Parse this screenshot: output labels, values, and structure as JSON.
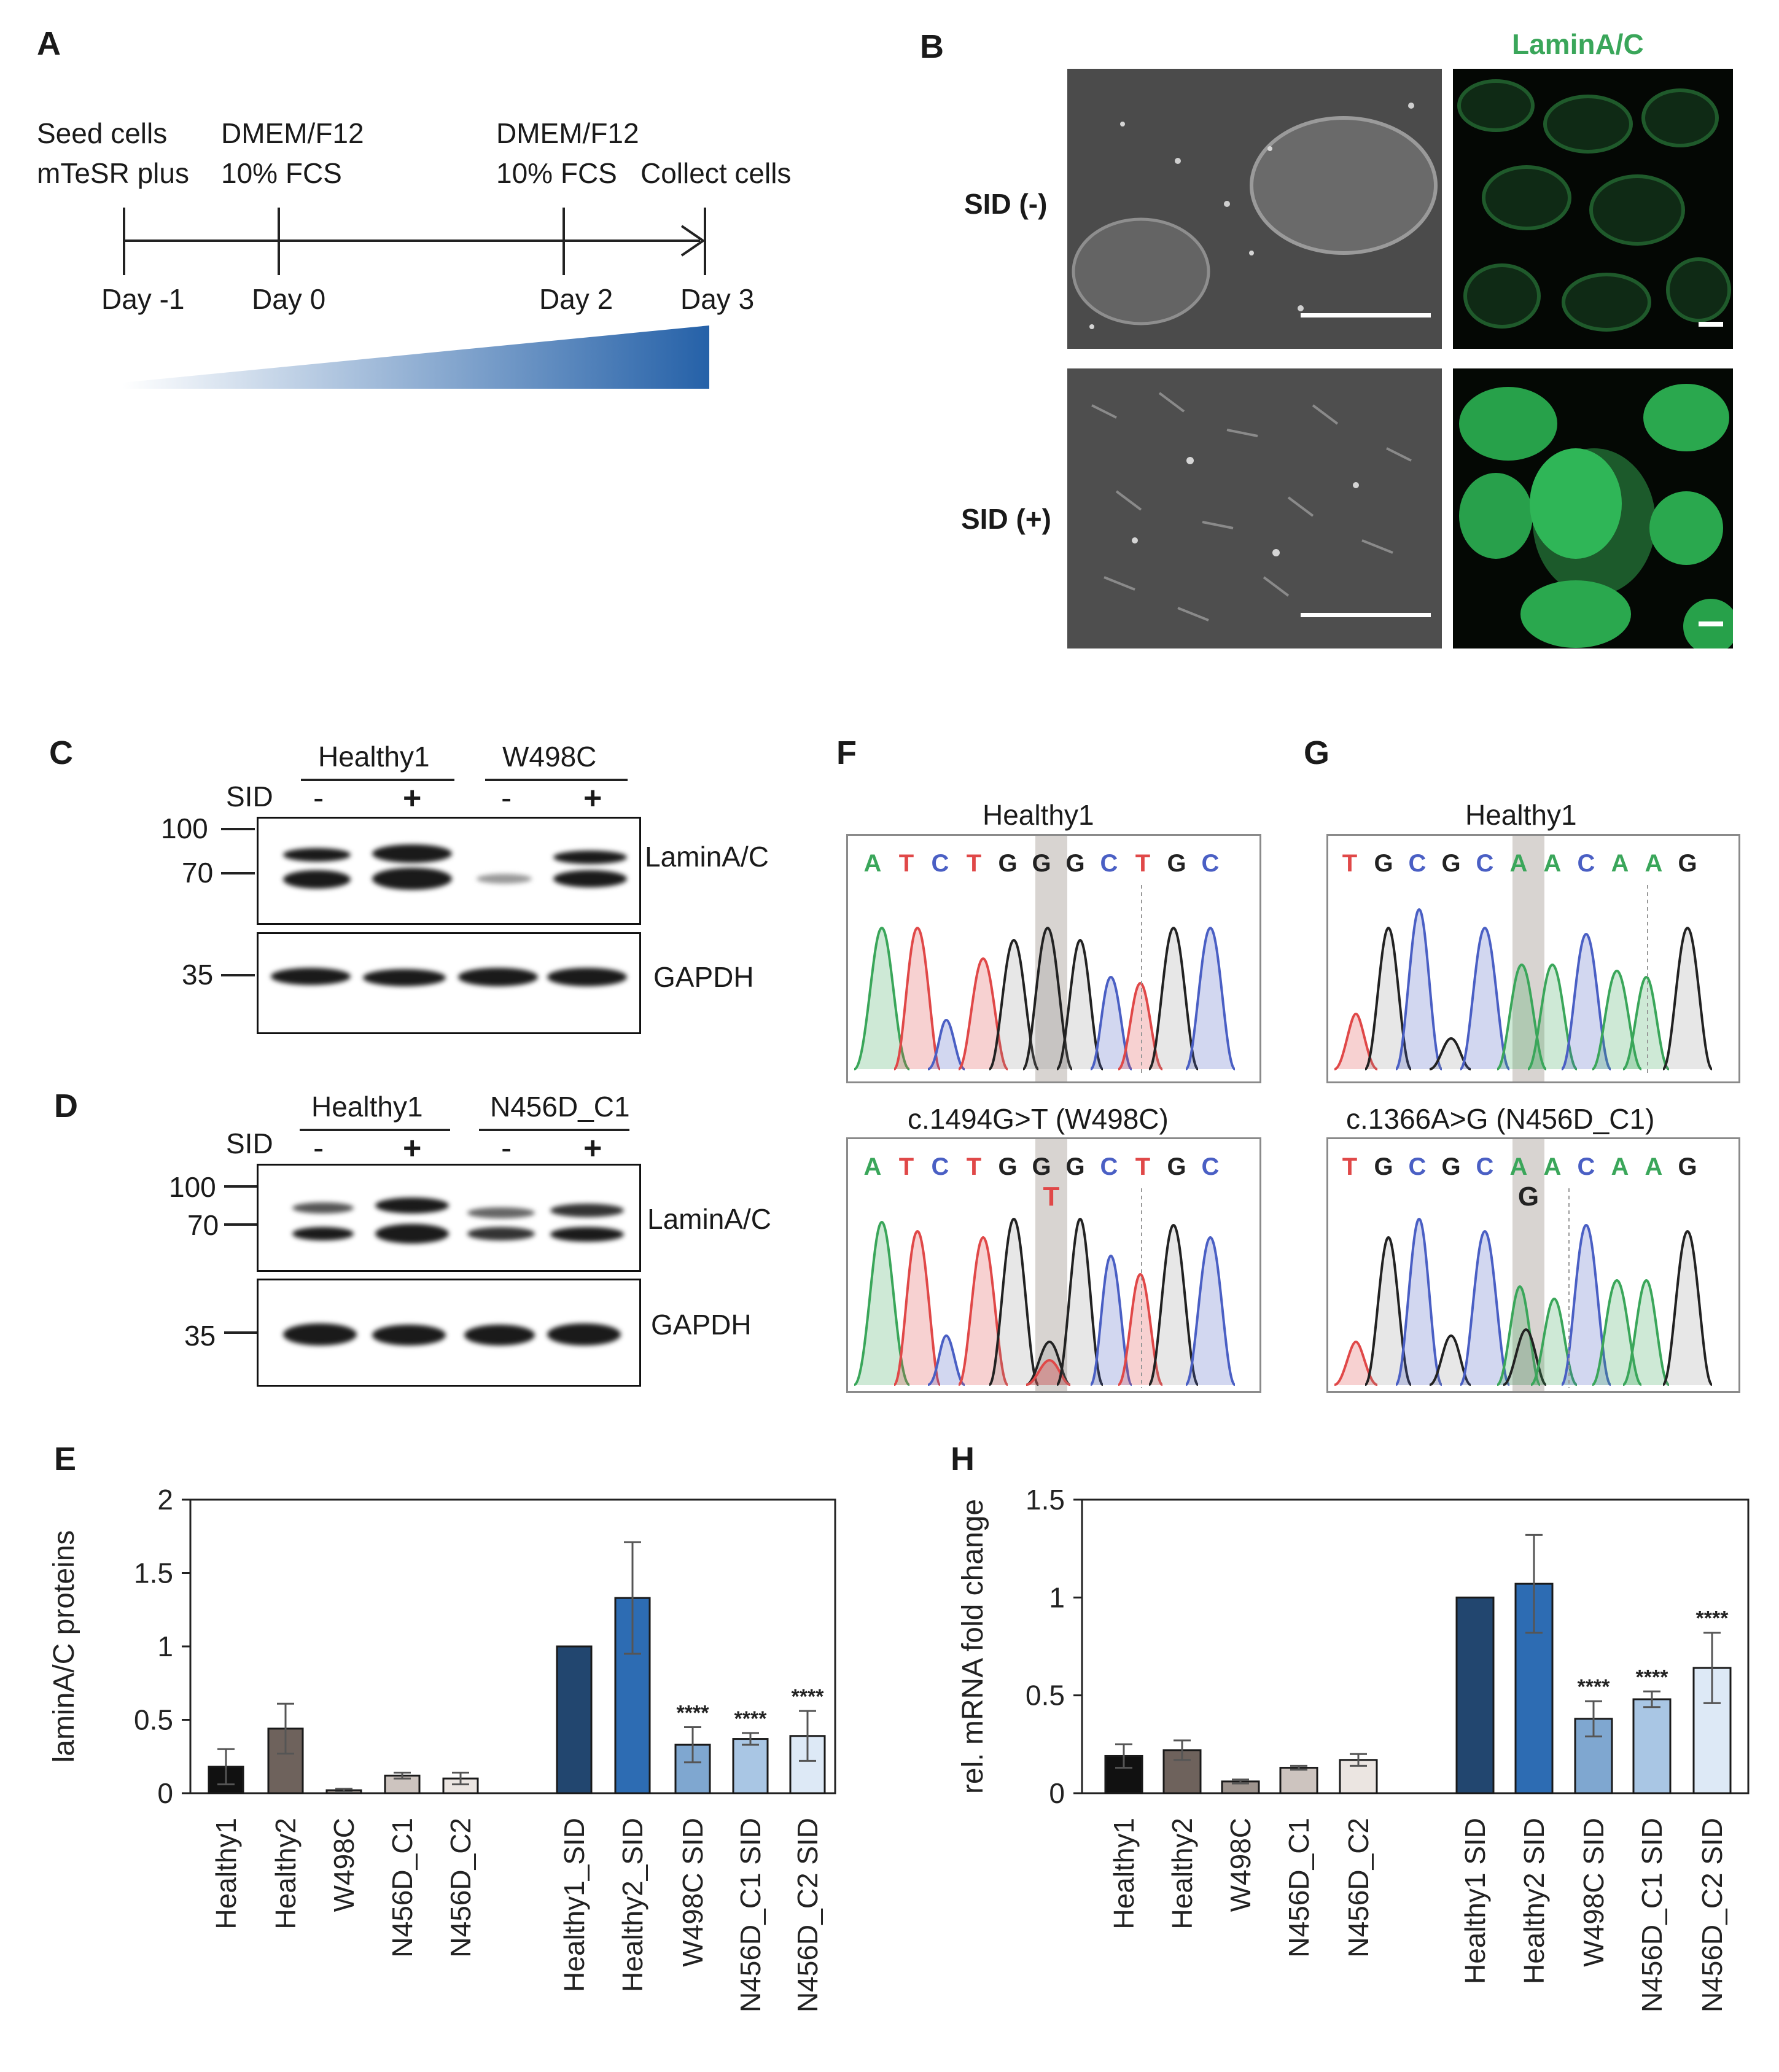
{
  "panels": {
    "A": "A",
    "B": "B",
    "C": "C",
    "D": "D",
    "E": "E",
    "F": "F",
    "G": "G",
    "H": "H"
  },
  "panel_a": {
    "seed_line1": "Seed cells",
    "seed_line2": "mTeSR plus",
    "d0_line1": "DMEM/F12",
    "d0_line2": "10% FCS",
    "d2_line1": "DMEM/F12",
    "d2_line2": "10% FCS",
    "collect": "Collect cells",
    "days": [
      "Day -1",
      "Day 0",
      "Day 2",
      "Day 3"
    ]
  },
  "panel_b": {
    "stain_label": "LaminA/C",
    "stain_color": "#3aa65a",
    "row1": "SID (-)",
    "row2": "SID (+)"
  },
  "panel_c": {
    "group1": "Healthy1",
    "group2": "W498C",
    "sid": "SID",
    "lanes": [
      "-",
      "+",
      "-",
      "+"
    ],
    "mw": [
      "100",
      "70",
      "35"
    ],
    "protein1": "LaminA/C",
    "protein2": "GAPDH"
  },
  "panel_d": {
    "group1": "Healthy1",
    "group2": "N456D_C1",
    "sid": "SID",
    "lanes": [
      "-",
      "+",
      "-",
      "+"
    ],
    "mw": [
      "100",
      "70",
      "35"
    ],
    "protein1": "LaminA/C",
    "protein2": "GAPDH"
  },
  "panel_f": {
    "top_title": "Healthy1",
    "bottom_title": "c.1494G>T (W498C)",
    "top_bases": [
      "A",
      "T",
      "C",
      "T",
      "G",
      "G",
      "G",
      "C",
      "T",
      "G",
      "C"
    ],
    "bottom_bases": [
      "A",
      "T",
      "C",
      "T",
      "G",
      "G",
      "G",
      "C",
      "T",
      "G",
      "C"
    ],
    "mutation": "T"
  },
  "panel_g": {
    "top_title": "Healthy1",
    "bottom_title": "c.1366A>G (N456D_C1)",
    "top_bases": [
      "T",
      "G",
      "C",
      "G",
      "C",
      "A",
      "A",
      "C",
      "A",
      "A",
      "G"
    ],
    "bottom_bases": [
      "T",
      "G",
      "C",
      "G",
      "C",
      "A",
      "A",
      "C",
      "A",
      "A",
      "G"
    ],
    "mutation": "G"
  },
  "base_colors": {
    "A": "#3aa65a",
    "T": "#e04848",
    "C": "#4a5fc4",
    "G": "#222222"
  },
  "chart_data": [
    {
      "id": "E",
      "type": "bar",
      "ylabel": "laminA/C proteins",
      "ylim": [
        0,
        2
      ],
      "yticks": [
        "0",
        "0.5",
        "1",
        "1.5",
        "2"
      ],
      "categories": [
        "Healthy1",
        "Healthy2",
        "W498C",
        "N456D_C1",
        "N456D_C2",
        "Healthy1_SID",
        "Healthy2_SID",
        "W498C SID",
        "N456D_C1 SID",
        "N456D_C2 SID"
      ],
      "values": [
        0.18,
        0.44,
        0.02,
        0.12,
        0.1,
        1.0,
        1.33,
        0.33,
        0.37,
        0.39
      ],
      "errors": [
        0.12,
        0.17,
        0.01,
        0.02,
        0.04,
        0.0,
        0.38,
        0.12,
        0.04,
        0.17
      ],
      "annotations": [
        "",
        "",
        "",
        "",
        "",
        "",
        "",
        "****",
        "****",
        "****"
      ],
      "colors": [
        "#111111",
        "#6e625c",
        "#9e948e",
        "#cdc4bf",
        "#ebe5e1",
        "#22466f",
        "#2d6cb3",
        "#7fa7d0",
        "#a9c6e4",
        "#dde9f6"
      ]
    },
    {
      "id": "H",
      "type": "bar",
      "ylabel": "rel. mRNA fold change",
      "ylim": [
        0,
        1.5
      ],
      "yticks": [
        "0",
        "0.5",
        "1",
        "1.5"
      ],
      "categories": [
        "Healthy1",
        "Healthy2",
        "W498C",
        "N456D_C1",
        "N456D_C2",
        "Healthy1 SID",
        "Healthy2 SID",
        "W498C SID",
        "N456D_C1 SID",
        "N456D_C2 SID"
      ],
      "values": [
        0.19,
        0.22,
        0.06,
        0.13,
        0.17,
        1.0,
        1.07,
        0.38,
        0.48,
        0.64
      ],
      "errors": [
        0.06,
        0.05,
        0.01,
        0.01,
        0.03,
        0.0,
        0.25,
        0.09,
        0.04,
        0.18
      ],
      "annotations": [
        "",
        "",
        "",
        "",
        "",
        "",
        "",
        "****",
        "****",
        "****"
      ],
      "colors": [
        "#111111",
        "#6e625c",
        "#9e948e",
        "#cdc4bf",
        "#ebe5e1",
        "#22466f",
        "#2d6cb3",
        "#7fa7d0",
        "#a9c6e4",
        "#dde9f6"
      ]
    }
  ]
}
